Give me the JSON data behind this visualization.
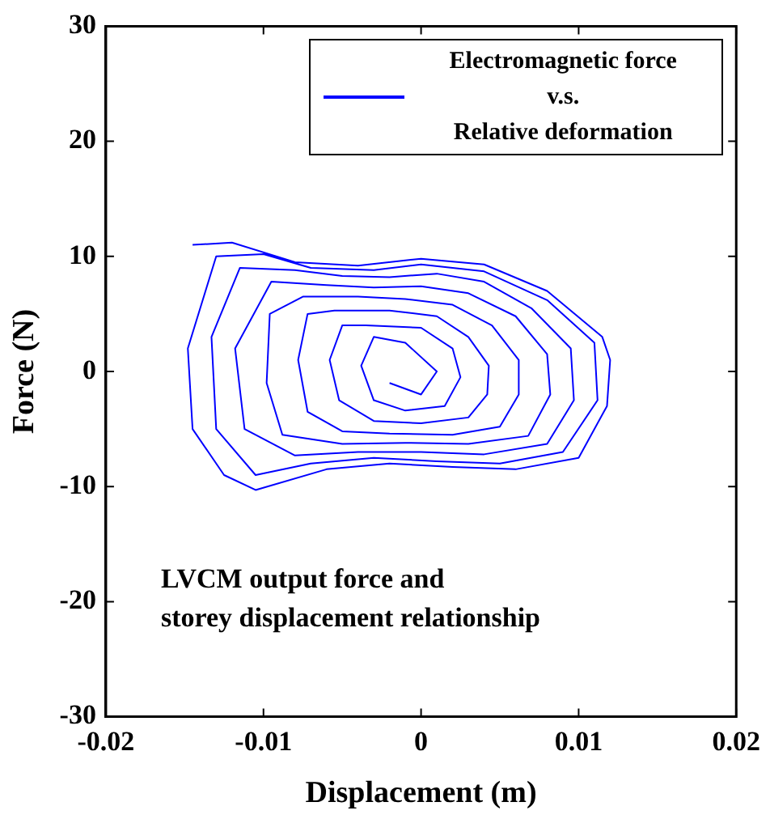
{
  "chart_data": {
    "type": "line",
    "xlabel": "Displacement (m)",
    "ylabel": "Force (N)",
    "xlim": [
      -0.02,
      0.02
    ],
    "xticks": [
      -0.02,
      -0.01,
      0,
      0.01,
      0.02
    ],
    "ylim": [
      -30,
      30
    ],
    "yticks": [
      -30,
      -20,
      -10,
      0,
      10,
      20,
      30
    ],
    "grid": false,
    "legend": "top right",
    "marker": "none",
    "line_style": "solid",
    "annotations": [
      "LVCM output force and\nstorey displacement relationship"
    ],
    "series": [
      {
        "name": "Electromagnetic force\nv.s.\nRelative deformation",
        "color": "#0000ff",
        "x": [
          -0.0145,
          -0.012,
          -0.008,
          -0.004,
          0,
          0.004,
          0.008,
          0.0115,
          0.012,
          0.0118,
          0.01,
          0.006,
          0.002,
          -0.002,
          -0.006,
          -0.0105,
          -0.0125,
          -0.0145,
          -0.0148,
          -0.013,
          -0.01,
          -0.007,
          -0.003,
          0,
          0.004,
          0.008,
          0.011,
          0.0112,
          0.009,
          0.005,
          0.001,
          -0.003,
          -0.007,
          -0.0105,
          -0.013,
          -0.0133,
          -0.0115,
          -0.008,
          -0.005,
          -0.002,
          0.001,
          0.004,
          0.007,
          0.0095,
          0.0097,
          0.008,
          0.004,
          0,
          -0.004,
          -0.008,
          -0.0112,
          -0.0118,
          -0.0095,
          -0.006,
          -0.003,
          0,
          0.003,
          0.006,
          0.008,
          0.0082,
          0.0068,
          0.003,
          -0.001,
          -0.005,
          -0.0088,
          -0.0098,
          -0.0096,
          -0.0075,
          -0.004,
          -0.001,
          0.002,
          0.0045,
          0.0062,
          0.0062,
          0.005,
          0.002,
          -0.002,
          -0.005,
          -0.0072,
          -0.0078,
          -0.0072,
          -0.0055,
          -0.002,
          0.001,
          0.003,
          0.0043,
          0.0042,
          0.003,
          0,
          -0.003,
          -0.0052,
          -0.0058,
          -0.005,
          -0.0035,
          0,
          0.002,
          0.0025,
          0.0015,
          -0.001,
          -0.003,
          -0.0038,
          -0.003,
          -0.001,
          0.001,
          0,
          -0.002
        ],
        "values": [
          11,
          11.2,
          9.5,
          9.2,
          9.8,
          9.3,
          7,
          3,
          1,
          -3,
          -7.5,
          -8.5,
          -8.3,
          -8,
          -8.5,
          -10.3,
          -9,
          -5,
          2,
          10,
          10.2,
          9,
          8.8,
          9.3,
          8.7,
          6.2,
          2.5,
          -2.5,
          -7,
          -8,
          -7.8,
          -7.5,
          -8,
          -9,
          -5,
          3,
          9,
          8.8,
          8.3,
          8.2,
          8.5,
          7.8,
          5.5,
          2,
          -2.5,
          -6.3,
          -7.2,
          -7,
          -7,
          -7.3,
          -5,
          2,
          7.8,
          7.5,
          7.3,
          7.4,
          6.8,
          4.8,
          1.5,
          -2,
          -5.6,
          -6.3,
          -6.2,
          -6.3,
          -5.5,
          -1,
          5,
          6.5,
          6.5,
          6.3,
          5.8,
          4,
          1,
          -2,
          -4.8,
          -5.5,
          -5.4,
          -5.2,
          -3.5,
          1,
          5,
          5.3,
          5.3,
          4.8,
          3,
          0.5,
          -2,
          -4,
          -4.5,
          -4.3,
          -2.5,
          1,
          4,
          4,
          3.8,
          2,
          -0.5,
          -3,
          -3.4,
          -2.5,
          0.5,
          3,
          2.5,
          0,
          -2,
          -1
        ]
      }
    ]
  }
}
